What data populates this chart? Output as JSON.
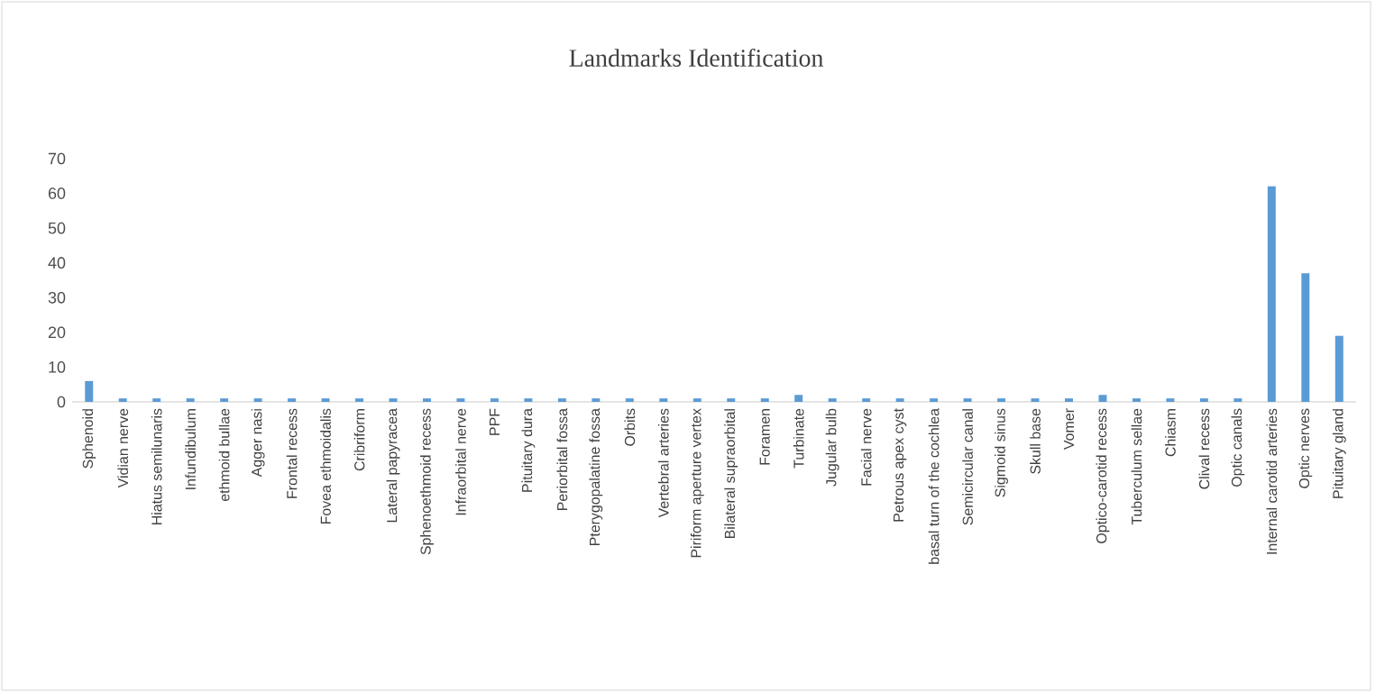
{
  "chart_data": {
    "type": "bar",
    "title": "Landmarks  Identification",
    "categories": [
      "Sphenoid",
      "Vidian nerve",
      "Hiatus semilunaris",
      "Infundibulum",
      "ethmoid bullae",
      "Agger nasi",
      "Frontal recess",
      "Fovea ethmoidalis",
      "Cribriform",
      "Lateral papyracea",
      "Sphenoethmoid recess",
      "Infraorbital nerve",
      "PPF",
      "Pituitary dura",
      "Periorbital fossa",
      "Pterygopalatine fossa",
      "Orbits",
      "Vertebral arteries",
      "Piriform aperture vertex",
      "Bilateral supraorbital",
      "Foramen",
      "Turbinate",
      "Jugular bulb",
      "Facial nerve",
      "Petrous apex cyst",
      "basal turn of the cochlea",
      "Semicircular canal",
      "Sigmoid sinus",
      "Skull base",
      "Vomer",
      "Optico-carotid recess",
      "Tuberculum sellae",
      "Chiasm",
      "Clival recess",
      "Optic canals",
      "Internal carotid arteries",
      "Optic nerves",
      "Pituitary gland"
    ],
    "values": [
      6,
      1,
      1,
      1,
      1,
      1,
      1,
      1,
      1,
      1,
      1,
      1,
      1,
      1,
      1,
      1,
      1,
      1,
      1,
      1,
      1,
      2,
      1,
      1,
      1,
      1,
      1,
      1,
      1,
      1,
      2,
      1,
      1,
      1,
      1,
      62,
      37,
      19
    ],
    "color": "#5b9bd5",
    "ylim": [
      0,
      70
    ],
    "yticks": [
      0,
      10,
      20,
      30,
      40,
      50,
      60,
      70
    ]
  }
}
